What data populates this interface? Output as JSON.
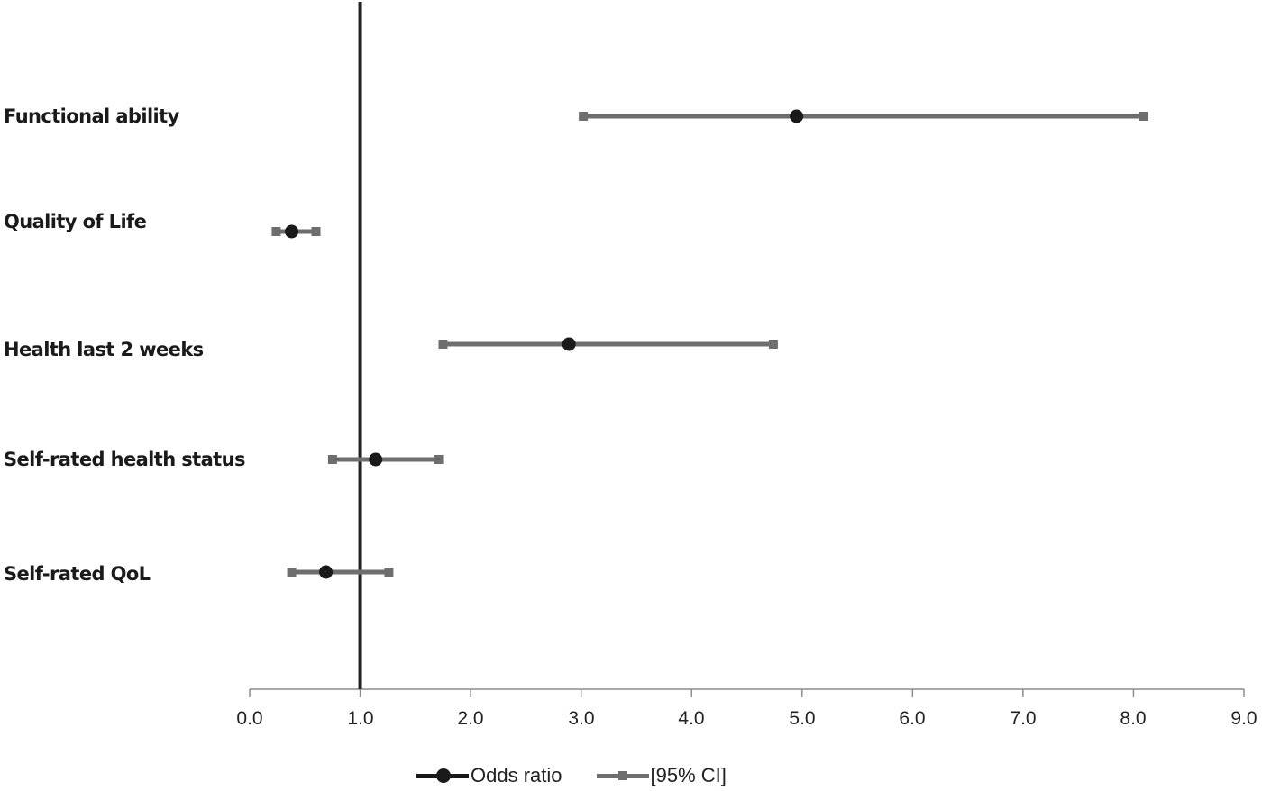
{
  "chart_data": {
    "type": "forest",
    "title": "",
    "xlabel": "",
    "ylabel": "",
    "xlim": [
      0.0,
      9.0
    ],
    "x_ticks": [
      "0.0",
      "1.0",
      "2.0",
      "3.0",
      "4.0",
      "5.0",
      "6.0",
      "7.0",
      "8.0",
      "9.0"
    ],
    "reference_line": 1.0,
    "grid": false,
    "legend_position": "bottom",
    "categories": [
      "Functional ability",
      "Quality of Life",
      "Health last 2 weeks",
      "Self-rated health status",
      "Self-rated QoL"
    ],
    "series": [
      {
        "name": "Odds ratio",
        "values": [
          4.95,
          0.38,
          2.89,
          1.14,
          0.69
        ],
        "color": "#1a1a1a",
        "marker": "circle"
      },
      {
        "name": "[95% CI] lower",
        "values": [
          3.02,
          0.24,
          1.75,
          0.75,
          0.38
        ],
        "color": "#6e6e6e",
        "marker": "square"
      },
      {
        "name": "[95% CI] upper",
        "values": [
          8.09,
          0.6,
          4.74,
          1.71,
          1.26
        ],
        "color": "#6e6e6e",
        "marker": "square"
      }
    ],
    "legend": [
      "Odds ratio",
      "[95% CI]"
    ]
  },
  "labels": {
    "categories": [
      "Functional ability",
      "Quality of Life",
      "Health last 2 weeks",
      "Self-rated health status",
      "Self-rated QoL"
    ],
    "ticks": [
      "0.0",
      "1.0",
      "2.0",
      "3.0",
      "4.0",
      "5.0",
      "6.0",
      "7.0",
      "8.0",
      "9.0"
    ],
    "legend_or": "Odds ratio",
    "legend_ci": "[95% CI]"
  },
  "colors": {
    "or": "#1a1a1a",
    "ci": "#6e6e6e",
    "axis": "#8c8c8c",
    "refline": "#222222"
  }
}
